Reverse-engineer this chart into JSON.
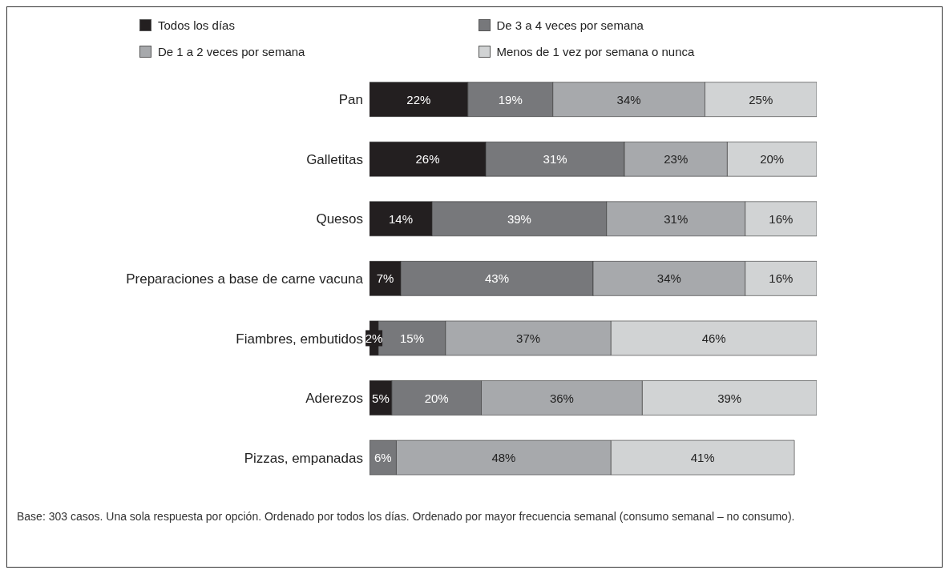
{
  "chart_data": {
    "type": "bar",
    "orientation": "horizontal",
    "stacked": true,
    "categories": [
      "Pan",
      "Galletitas",
      "Quesos",
      "Preparaciones a base de carne vacuna",
      "Fiambres, embutidos",
      "Aderezos",
      "Pizzas, empanadas"
    ],
    "series": [
      {
        "name": "Todos los días",
        "color": "#231f20",
        "values": [
          22,
          26,
          14,
          7,
          2,
          5,
          null
        ],
        "value_labels": [
          "22%",
          "26%",
          "14%",
          "7%",
          "2%",
          "5%",
          null
        ]
      },
      {
        "name": "De 3 a 4 veces por semana",
        "color": "#77787b",
        "values": [
          19,
          31,
          39,
          43,
          15,
          20,
          6
        ],
        "value_labels": [
          "19%",
          "31%",
          "39%",
          "43%",
          "15%",
          "20%",
          "6%"
        ]
      },
      {
        "name": "De 1 a 2 veces por semana",
        "color": "#a7a9ac",
        "values": [
          34,
          23,
          31,
          34,
          37,
          36,
          48
        ],
        "value_labels": [
          "34%",
          "23%",
          "31%",
          "34%",
          "37%",
          "36%",
          "48%"
        ]
      },
      {
        "name": "Menos de 1 vez por semana o nunca",
        "color": "#d1d3d4",
        "values": [
          25,
          20,
          16,
          16,
          46,
          39,
          41
        ],
        "value_labels": [
          "25%",
          "20%",
          "16%",
          "16%",
          "46%",
          "39%",
          "41%"
        ]
      }
    ],
    "xlim": [
      0,
      100
    ],
    "tick_labels": "y",
    "legend": "top",
    "annotations": [
      "Base: 303 casos. Una sola respuesta por opción. Ordenado por todos los días. Ordenado por mayor frecuencia semanal (consumo semanal – no consumo)."
    ]
  }
}
